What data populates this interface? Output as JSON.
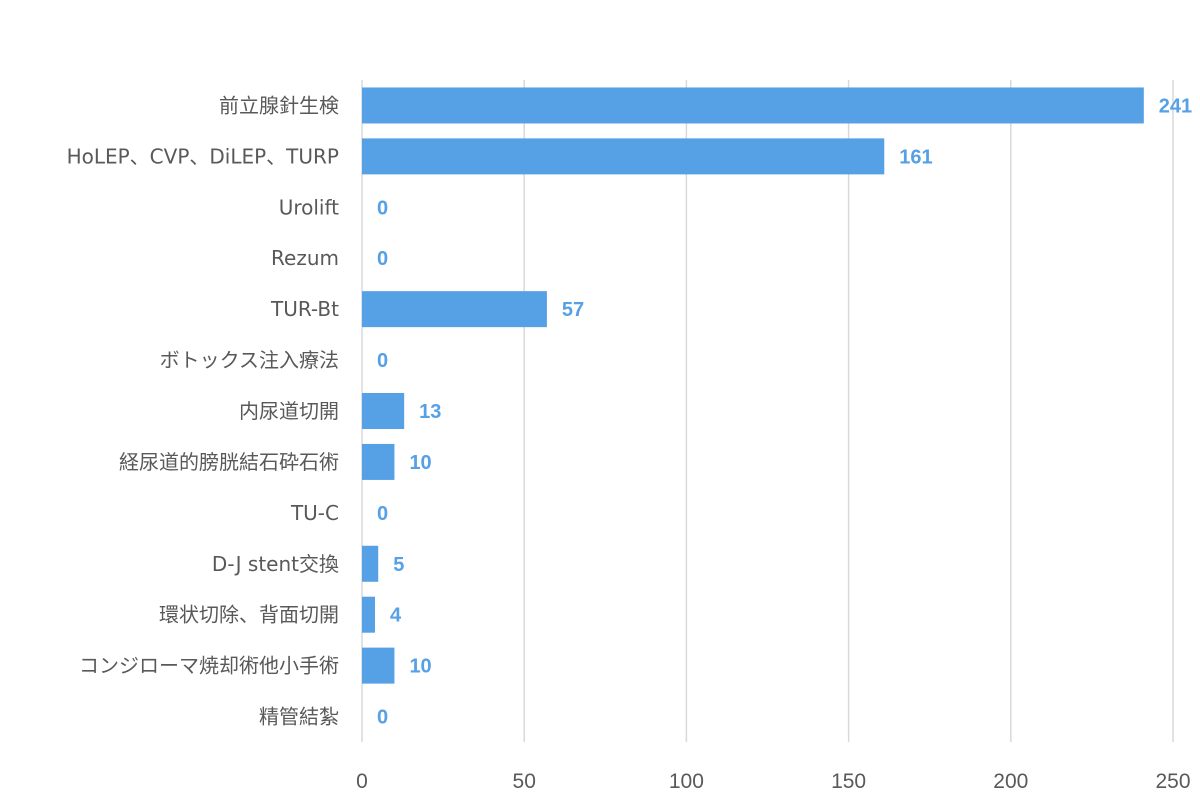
{
  "chart_data": {
    "type": "bar",
    "orientation": "horizontal",
    "categories": [
      "前立腺針生検",
      "HoLEP、CVP、DiLEP、TURP",
      "Urolift",
      "Rezum",
      "TUR-Bt",
      "ボトックス注入療法",
      "内尿道切開",
      "経尿道的膀胱結石砕石術",
      "TU-C",
      "D-J stent交換",
      "環状切除、背面切開",
      "コンジローマ焼却術他小手術",
      "精管結紮"
    ],
    "values": [
      241,
      161,
      0,
      0,
      57,
      0,
      13,
      10,
      0,
      5,
      4,
      10,
      0
    ],
    "value_labels": [
      "241",
      "161",
      "0",
      "0",
      "57",
      "0",
      "13",
      "10",
      "0",
      "5",
      "4",
      "10",
      "0"
    ],
    "x_ticks": [
      "0",
      "50",
      "100",
      "150",
      "200",
      "250"
    ],
    "xlim": [
      0,
      250
    ],
    "grid": "vertical",
    "title": "",
    "xlabel": "",
    "ylabel": "",
    "colors": {
      "bar": "#56a0e5",
      "value_label": "#56a0e5",
      "grid": "#d9d9d9",
      "text": "#595959"
    }
  }
}
